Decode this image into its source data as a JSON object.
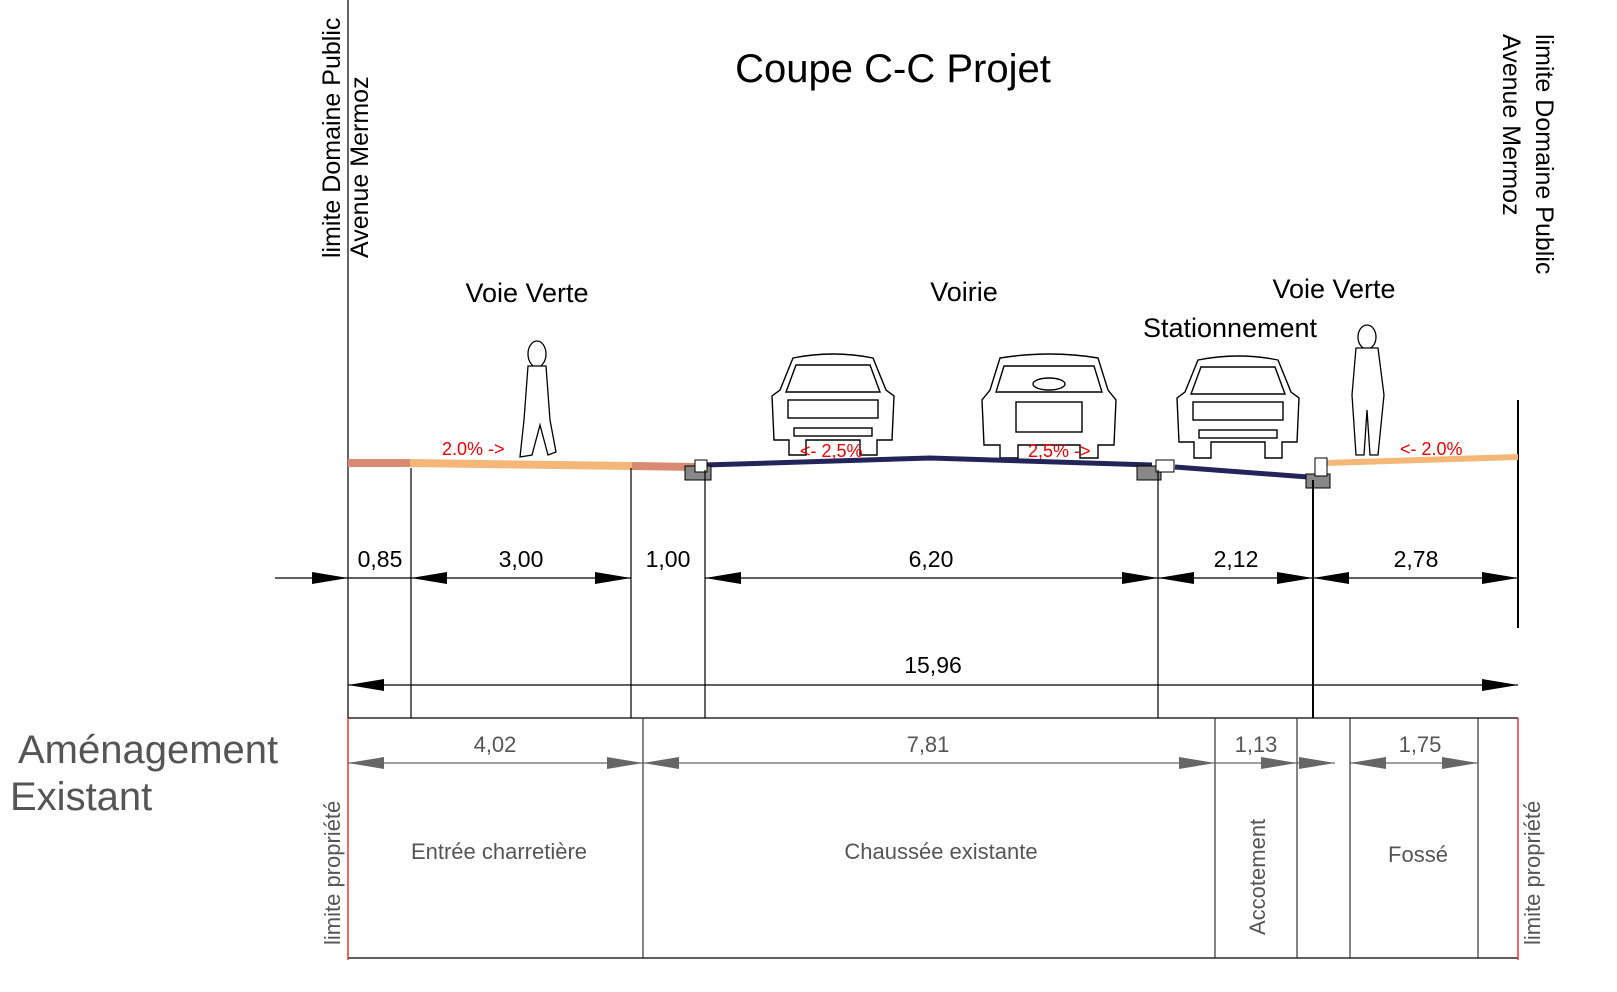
{
  "title": "Coupe C-C Projet",
  "boundaries": {
    "left": {
      "line1": "limite Domaine Public",
      "line2": "Avenue Mermoz"
    },
    "right": {
      "line1": "limite Domaine Public",
      "line2": "Avenue Mermoz"
    }
  },
  "zones": [
    "Voie Verte",
    "Voirie",
    "Stationnement",
    "Voie Verte"
  ],
  "slopes": [
    "2.0% ->",
    "<- 2,5%",
    "2,5% ->",
    "<- 2.0%"
  ],
  "project_dimensions": [
    "0,85",
    "3,00",
    "1,00",
    "6,20",
    "2,12",
    "2,78"
  ],
  "total_dimension": "15,96",
  "existing": {
    "title_line1": "Aménagement",
    "title_line2": "Existant",
    "property_limit_left": "limite propriété",
    "property_limit_right": "limite propriété",
    "dimensions": [
      "4,02",
      "7,81",
      "1,13",
      "1,75"
    ],
    "labels": [
      "Entrée charretière",
      "Chaussée existante",
      "Accotement",
      "Fossé"
    ]
  }
}
